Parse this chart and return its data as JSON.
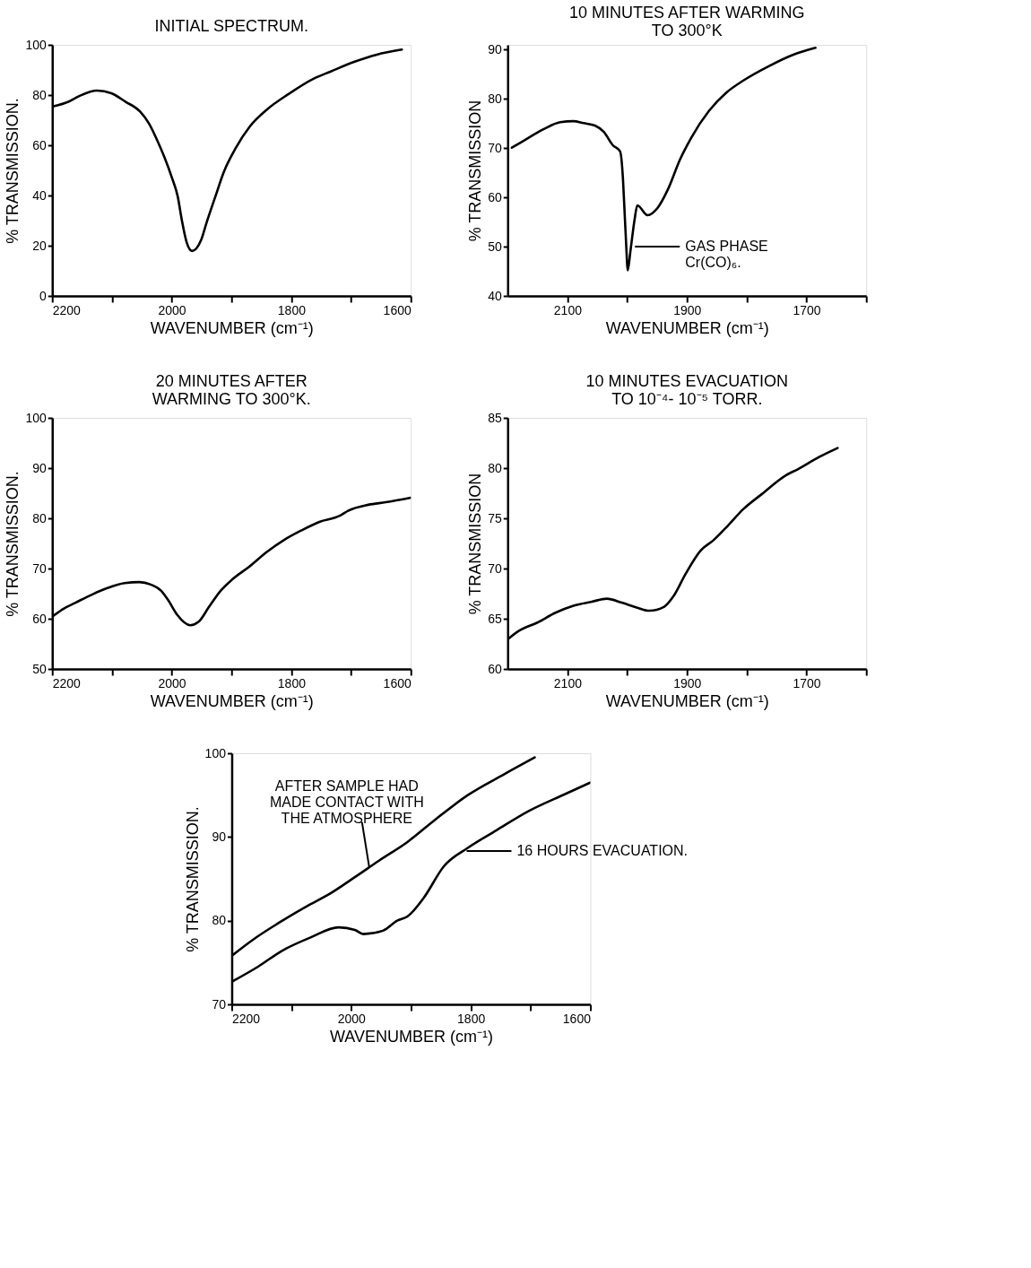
{
  "chart_data": [
    {
      "type": "line",
      "title": "INITIAL SPECTRUM.",
      "xlabel": "WAVENUMBER (cm⁻¹)",
      "ylabel": "% TRANSMISSION.",
      "xlim": [
        2200,
        1600
      ],
      "xticks": [
        2200,
        {
          "value": 2100,
          "label": null
        },
        2000,
        {
          "value": 1900,
          "label": null
        },
        1800,
        {
          "value": 1700,
          "label": null
        },
        1600
      ],
      "ylim": [
        0,
        100
      ],
      "yticks": [
        0,
        20,
        40,
        60,
        80,
        100
      ],
      "series": [
        {
          "color": "#000000",
          "x": [
            2200,
            2173,
            2154,
            2125,
            2101,
            2077,
            2053,
            2038,
            2024,
            2012,
            2000,
            1990,
            1983,
            1975,
            1966,
            1951,
            1942,
            1927,
            1913,
            1893,
            1869,
            1840,
            1806,
            1763,
            1734,
            1695,
            1657,
            1615
          ],
          "values": [
            75.4,
            77.3,
            79.7,
            81.8,
            80.7,
            77.3,
            73.4,
            68.6,
            61.8,
            55.1,
            47.3,
            39.6,
            30,
            21.3,
            17.9,
            22.2,
            29,
            39.6,
            49.3,
            58.9,
            67.6,
            74.4,
            80.2,
            86.5,
            89.4,
            93.2,
            96.1,
            98.1
          ]
        }
      ]
    },
    {
      "type": "line",
      "title": "10 MINUTES AFTER WARMING\nTO 300°K",
      "xlabel": "WAVENUMBER (cm⁻¹)",
      "ylabel": "% TRANSMISSION",
      "xlim": [
        2200,
        1600
      ],
      "xticks": [
        2100,
        {
          "value": 2000,
          "label": null
        },
        1900,
        {
          "value": 1800,
          "label": null
        },
        1700,
        {
          "value": 1600,
          "label": null
        }
      ],
      "ylim": [
        40,
        91
      ],
      "yticks": [
        40,
        50,
        60,
        70,
        80,
        90
      ],
      "series": [
        {
          "color": "#000000",
          "x": [
            2193,
            2176,
            2141,
            2112,
            2090,
            2073,
            2054,
            2039,
            2024,
            2012,
            2007,
            2005,
            2002,
            1999,
            1995,
            1988,
            1983,
            1966,
            1949,
            1932,
            1912,
            1893,
            1863,
            1834,
            1805,
            1761,
            1722,
            1685
          ],
          "values": [
            70.1,
            71.3,
            73.8,
            75.3,
            75.5,
            75.1,
            74.6,
            73.3,
            70.6,
            69.4,
            63.6,
            58.7,
            51.2,
            45.2,
            48.7,
            55.2,
            58.4,
            56.4,
            57.9,
            61.6,
            67.6,
            72.1,
            77.6,
            81.3,
            83.8,
            86.8,
            89.0,
            90.4
          ]
        }
      ],
      "annotations": [
        "GAS PHASE\nCr(CO)₆."
      ]
    },
    {
      "type": "line",
      "title": "20 MINUTES AFTER\nWARMING TO 300°K.",
      "xlabel": "WAVENUMBER (cm⁻¹)",
      "ylabel": "% TRANSMISSION.",
      "xlim": [
        2200,
        1600
      ],
      "xticks": [
        2200,
        {
          "value": 2100,
          "label": null
        },
        2000,
        {
          "value": 1900,
          "label": null
        },
        1800,
        {
          "value": 1700,
          "label": null
        },
        1600
      ],
      "ylim": [
        50,
        100
      ],
      "yticks": [
        50,
        60,
        70,
        80,
        90,
        100
      ],
      "series": [
        {
          "color": "#000000",
          "x": [
            2198,
            2181,
            2161,
            2132,
            2108,
            2079,
            2054,
            2035,
            2018,
            2006,
            1991,
            1969,
            1955,
            1938,
            1918,
            1899,
            1870,
            1841,
            1812,
            1783,
            1753,
            1719,
            1705,
            1671,
            1642,
            1600
          ],
          "values": [
            60.6,
            62.0,
            63.2,
            64.9,
            66.1,
            67.1,
            67.3,
            66.8,
            65.6,
            63.7,
            60.8,
            58.7,
            59.4,
            62.3,
            65.6,
            67.8,
            70.4,
            73.3,
            75.7,
            77.6,
            79.3,
            80.5,
            81.5,
            82.7,
            83.2,
            84.1
          ]
        }
      ]
    },
    {
      "type": "line",
      "title": "10 MINUTES EVACUATION\nTO 10⁻⁴- 10⁻⁵ TORR.",
      "xlabel": "WAVENUMBER (cm⁻¹)",
      "ylabel": "% TRANSMISSION",
      "xlim": [
        2200,
        1600
      ],
      "xticks": [
        2100,
        {
          "value": 2000,
          "label": null
        },
        1900,
        {
          "value": 1800,
          "label": null
        },
        1700,
        {
          "value": 1600,
          "label": null
        }
      ],
      "ylim": [
        60,
        85
      ],
      "yticks": [
        60,
        65,
        70,
        75,
        80,
        85
      ],
      "series": [
        {
          "color": "#000000",
          "x": [
            2199,
            2181,
            2151,
            2120,
            2090,
            2059,
            2034,
            2009,
            1983,
            1963,
            1938,
            1923,
            1902,
            1877,
            1856,
            1831,
            1806,
            1775,
            1734,
            1714,
            1679,
            1648
          ],
          "values": [
            63.0,
            63.8,
            64.6,
            65.6,
            66.3,
            66.7,
            67.0,
            66.6,
            66.1,
            65.8,
            66.2,
            67.2,
            69.5,
            71.8,
            72.8,
            74.3,
            75.9,
            77.4,
            79.3,
            79.9,
            81.1,
            82.0
          ]
        }
      ]
    },
    {
      "type": "line",
      "xlabel": "WAVENUMBER (cm⁻¹)",
      "ylabel": "% TRANSMISSION.",
      "xlim": [
        2200,
        1600
      ],
      "xticks": [
        2200,
        {
          "value": 2100,
          "label": null
        },
        2000,
        {
          "value": 1900,
          "label": null
        },
        1800,
        {
          "value": 1700,
          "label": null
        },
        1600
      ],
      "ylim": [
        70,
        100
      ],
      "yticks": [
        70,
        80,
        90,
        100
      ],
      "series": [
        {
          "color": "#000000",
          "x": [
            2200,
            2163,
            2122,
            2075,
            2034,
            1994,
            1953,
            1906,
            1859,
            1805,
            1744,
            1693
          ],
          "values": [
            75.8,
            77.8,
            79.7,
            81.7,
            83.3,
            85.2,
            87.2,
            89.4,
            92.1,
            95.0,
            97.5,
            99.5
          ]
        },
        {
          "color": "#000000",
          "x": [
            2200,
            2156,
            2116,
            2068,
            2021,
            1994,
            1980,
            1947,
            1923,
            1906,
            1879,
            1845,
            1805,
            1757,
            1703,
            1643,
            1600
          ],
          "values": [
            72.7,
            74.5,
            76.4,
            78.0,
            79.2,
            78.9,
            78.4,
            78.8,
            80.0,
            80.5,
            82.7,
            86.5,
            88.7,
            90.8,
            93.1,
            95.1,
            96.5
          ]
        }
      ],
      "annotations": [
        {
          "text": "AFTER SAMPLE HAD\nMADE CONTACT WITH\nTHE ATMOSPHERE",
          "x": 1970,
          "y": 86.4
        },
        "16 HOURS EVACUATION."
      ]
    }
  ]
}
